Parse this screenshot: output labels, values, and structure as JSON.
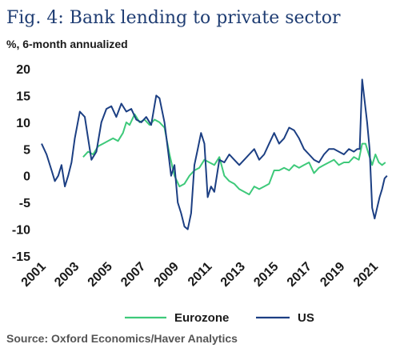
{
  "chart_data": {
    "type": "line",
    "title": "Fig. 4: Bank lending to private sector",
    "subtitle": "%, 6-month annualized",
    "source": "Source: Oxford Economics/Haver Analytics",
    "xlim": [
      2001,
      2022
    ],
    "ylim": [
      -15,
      20
    ],
    "y_ticks": [
      20,
      15,
      10,
      5,
      0,
      -5,
      -10,
      -15
    ],
    "x_ticks": [
      "2001",
      "2003",
      "2005",
      "2007",
      "2009",
      "2011",
      "2013",
      "2015",
      "2017",
      "2019",
      "2021"
    ],
    "grid": false,
    "legend_position": "bottom",
    "series": [
      {
        "name": "Eurozone",
        "color": "#3ec97a",
        "x": [
          2003.5,
          2003.8,
          2004.1,
          2004.4,
          2004.7,
          2005.0,
          2005.3,
          2005.6,
          2005.9,
          2006.1,
          2006.3,
          2006.6,
          2006.9,
          2007.2,
          2007.5,
          2007.8,
          2008.1,
          2008.4,
          2008.7,
          2009.0,
          2009.3,
          2009.6,
          2009.9,
          2010.2,
          2010.5,
          2010.8,
          2011.1,
          2011.4,
          2011.7,
          2012.0,
          2012.3,
          2012.6,
          2012.9,
          2013.2,
          2013.5,
          2013.8,
          2014.1,
          2014.4,
          2014.7,
          2015.0,
          2015.3,
          2015.6,
          2015.9,
          2016.2,
          2016.5,
          2016.8,
          2017.1,
          2017.4,
          2017.7,
          2018.0,
          2018.3,
          2018.6,
          2018.9,
          2019.2,
          2019.5,
          2019.8,
          2020.1,
          2020.3,
          2020.5,
          2020.7,
          2020.9,
          2021.1,
          2021.3,
          2021.5,
          2021.7
        ],
        "values": [
          3.5,
          4.5,
          4.0,
          5.5,
          6.0,
          6.5,
          7.0,
          6.5,
          8.0,
          10.0,
          9.5,
          11.5,
          10.0,
          10.5,
          9.5,
          10.5,
          10.0,
          9.0,
          4.0,
          0.0,
          -2.0,
          -1.5,
          0.0,
          1.0,
          1.5,
          3.0,
          2.5,
          2.0,
          3.5,
          0.0,
          -1.0,
          -1.5,
          -2.5,
          -3.0,
          -3.5,
          -2.0,
          -2.5,
          -2.0,
          -1.5,
          1.0,
          1.0,
          1.5,
          1.0,
          2.0,
          1.5,
          2.0,
          2.5,
          0.5,
          1.5,
          2.0,
          2.5,
          3.0,
          2.0,
          2.5,
          2.5,
          3.5,
          3.0,
          6.0,
          6.0,
          4.0,
          2.0,
          4.0,
          2.5,
          2.0,
          2.5
        ]
      },
      {
        "name": "US",
        "color": "#1c3f83",
        "x": [
          2001.0,
          2001.3,
          2001.6,
          2001.8,
          2002.0,
          2002.2,
          2002.4,
          2002.6,
          2002.8,
          2003.0,
          2003.3,
          2003.6,
          2003.8,
          2004.0,
          2004.3,
          2004.6,
          2004.9,
          2005.2,
          2005.5,
          2005.8,
          2006.1,
          2006.4,
          2006.7,
          2007.0,
          2007.3,
          2007.6,
          2007.9,
          2008.1,
          2008.4,
          2008.6,
          2008.8,
          2009.0,
          2009.2,
          2009.4,
          2009.6,
          2009.8,
          2010.0,
          2010.2,
          2010.4,
          2010.6,
          2010.8,
          2011.0,
          2011.2,
          2011.4,
          2011.7,
          2012.0,
          2012.3,
          2012.6,
          2012.9,
          2013.2,
          2013.5,
          2013.8,
          2014.1,
          2014.4,
          2014.7,
          2015.0,
          2015.3,
          2015.6,
          2015.9,
          2016.2,
          2016.5,
          2016.8,
          2017.1,
          2017.4,
          2017.7,
          2018.0,
          2018.3,
          2018.6,
          2018.9,
          2019.2,
          2019.5,
          2019.8,
          2020.0,
          2020.15,
          2020.3,
          2020.45,
          2020.6,
          2020.75,
          2020.9,
          2021.05,
          2021.2,
          2021.35,
          2021.5,
          2021.65,
          2021.8
        ],
        "values": [
          6.0,
          4.0,
          1.0,
          -1.0,
          0.0,
          2.0,
          -2.0,
          0.0,
          2.5,
          7.0,
          12.0,
          11.0,
          7.0,
          3.0,
          4.5,
          10.0,
          12.5,
          13.0,
          11.0,
          13.5,
          12.0,
          12.5,
          10.5,
          10.0,
          11.0,
          9.5,
          15.0,
          14.5,
          10.0,
          5.0,
          0.0,
          2.0,
          -5.0,
          -7.0,
          -9.5,
          -10.0,
          -7.0,
          2.0,
          5.0,
          8.0,
          6.0,
          -4.0,
          -2.0,
          -3.0,
          3.0,
          2.5,
          4.0,
          3.0,
          2.0,
          3.0,
          4.0,
          5.0,
          3.0,
          4.0,
          6.0,
          8.0,
          6.0,
          7.0,
          9.0,
          8.5,
          7.0,
          5.0,
          4.0,
          3.0,
          2.5,
          4.0,
          5.0,
          5.0,
          4.5,
          4.0,
          5.0,
          4.5,
          5.0,
          5.0,
          18.0,
          14.0,
          10.0,
          5.0,
          -6.0,
          -8.0,
          -6.0,
          -4.0,
          -2.5,
          -0.5,
          0.0
        ]
      }
    ]
  }
}
